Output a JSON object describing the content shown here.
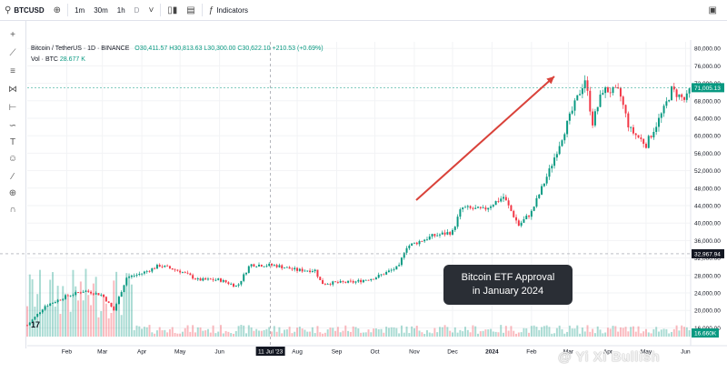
{
  "toolbar": {
    "symbol": "BTCUSD",
    "intervals": [
      "1m",
      "30m",
      "1h",
      "D"
    ],
    "active_interval": "D",
    "indicators_label": "Indicators"
  },
  "legend": {
    "symbol_label": "Bitcoin / TetherUS · 1D · BINANCE",
    "ohlc": "O30,411.57 H30,813.63 L30,300.00 C30,622.10 +210.53 (+0.69%)",
    "volume_label": "Vol · BTC",
    "volume_value": "28.677 K"
  },
  "callout": {
    "line1": "Bitcoin ETF Approval",
    "line2": "in January 2024"
  },
  "watermark": "@ Yi Xi Bullish",
  "tv_logo": "17",
  "colors": {
    "up": "#089981",
    "down": "#f23645",
    "arrow": "#d9423a",
    "callout_bg": "#2a2e35"
  },
  "chart_data": {
    "type": "candlestick",
    "symbol": "Bitcoin / TetherUS",
    "timeframe": "1D",
    "exchange": "BINANCE",
    "x_ticks": [
      "Feb",
      "Mar",
      "Apr",
      "May",
      "Jun",
      "11 Jul '23",
      "Aug",
      "Sep",
      "Oct",
      "Nov",
      "Dec",
      "2024",
      "Feb",
      "Mar",
      "Apr",
      "May",
      "Jun"
    ],
    "y_ticks": [
      "80,000.00",
      "76,000.00",
      "72,000.00",
      "68,000.00",
      "64,000.00",
      "60,000.00",
      "56,000.00",
      "52,000.00",
      "48,000.00",
      "44,000.00",
      "40,000.00",
      "36,000.00",
      "32,000.00",
      "28,000.00",
      "24,000.00",
      "20,000.00",
      "16,000.00"
    ],
    "ylim": [
      14000,
      81500
    ],
    "crosshair_date": "11 Jul '23",
    "crosshair_price_label": "32,967.94",
    "last_price_label": "71,005.13",
    "volume_label": "16.660K",
    "price_path": [
      [
        "2023-01-01",
        16600
      ],
      [
        "2023-01-15",
        21000
      ],
      [
        "2023-02-01",
        23300
      ],
      [
        "2023-02-15",
        24500
      ],
      [
        "2023-03-01",
        23500
      ],
      [
        "2023-03-10",
        20000
      ],
      [
        "2023-03-20",
        27500
      ],
      [
        "2023-04-01",
        28500
      ],
      [
        "2023-04-15",
        30300
      ],
      [
        "2023-05-01",
        29000
      ],
      [
        "2023-05-15",
        27000
      ],
      [
        "2023-06-01",
        27000
      ],
      [
        "2023-06-15",
        25500
      ],
      [
        "2023-06-25",
        30500
      ],
      [
        "2023-07-15",
        30300
      ],
      [
        "2023-08-01",
        29200
      ],
      [
        "2023-08-15",
        29200
      ],
      [
        "2023-08-20",
        26200
      ],
      [
        "2023-09-15",
        26500
      ],
      [
        "2023-10-01",
        27500
      ],
      [
        "2023-10-20",
        30000
      ],
      [
        "2023-10-25",
        34500
      ],
      [
        "2023-11-15",
        37000
      ],
      [
        "2023-12-01",
        38000
      ],
      [
        "2023-12-08",
        43500
      ],
      [
        "2023-12-25",
        43000
      ],
      [
        "2024-01-10",
        46000
      ],
      [
        "2024-01-22",
        39500
      ],
      [
        "2024-02-01",
        42500
      ],
      [
        "2024-02-15",
        52000
      ],
      [
        "2024-02-28",
        62000
      ],
      [
        "2024-03-14",
        73000
      ],
      [
        "2024-03-20",
        63000
      ],
      [
        "2024-03-28",
        70500
      ],
      [
        "2024-04-10",
        70000
      ],
      [
        "2024-04-18",
        61500
      ],
      [
        "2024-05-01",
        58000
      ],
      [
        "2024-05-15",
        66000
      ],
      [
        "2024-05-21",
        70500
      ],
      [
        "2024-06-01",
        68000
      ],
      [
        "2024-06-05",
        71005
      ]
    ]
  }
}
